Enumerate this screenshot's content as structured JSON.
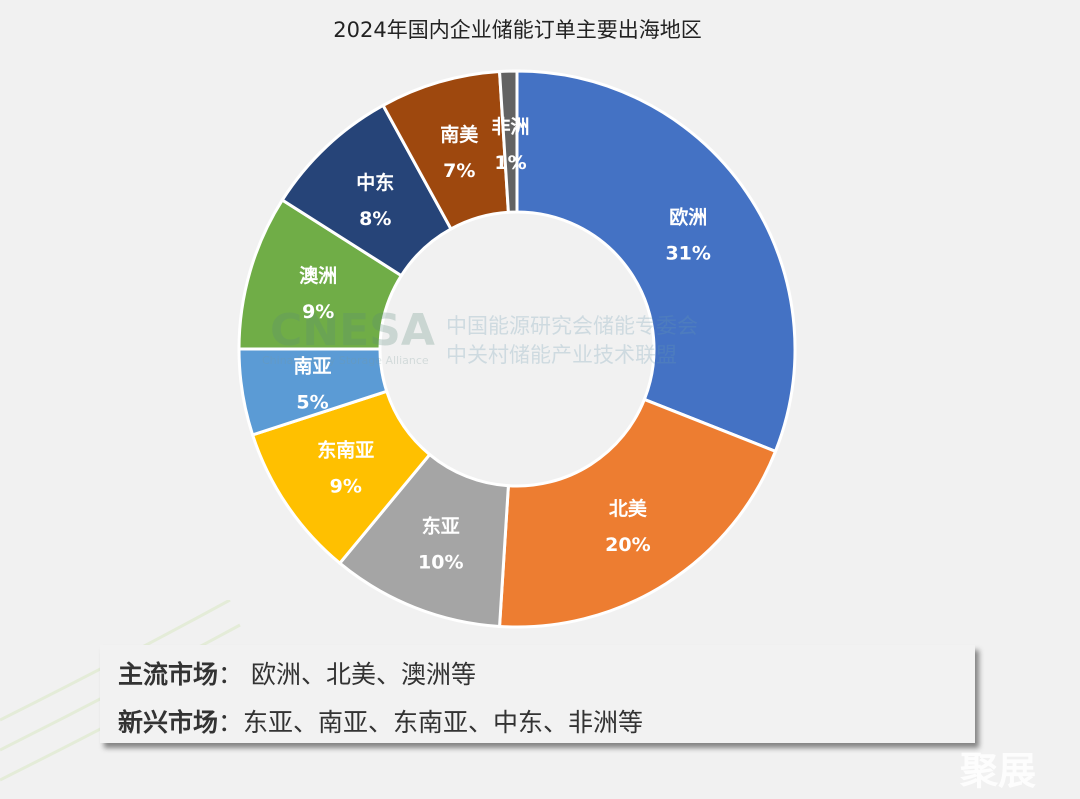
{
  "chart_data": {
    "type": "pie",
    "donut": true,
    "title": "2024年国内企业储能订单主要出海地区",
    "categories": [
      "欧洲",
      "北美",
      "东亚",
      "东南亚",
      "南亚",
      "澳洲",
      "中东",
      "南美",
      "非洲"
    ],
    "values": [
      31,
      20,
      10,
      9,
      5,
      9,
      8,
      7,
      1
    ],
    "labels": [
      "31%",
      "20%",
      "10%",
      "9%",
      "5%",
      "9%",
      "8%",
      "7%",
      "1%"
    ],
    "colors": [
      "#4472C4",
      "#ED7D31",
      "#A5A5A5",
      "#FFC000",
      "#5B9BD5",
      "#70AD47",
      "#264478",
      "#9E480E",
      "#636363"
    ],
    "start": "12 o'clock, clockwise",
    "legend": "none"
  },
  "watermark": {
    "logo": "CNESA",
    "logo_sub": "China Energy Storage Alliance",
    "line1": "中国能源研究会储能专委会",
    "line2": "中关村储能产业技术联盟"
  },
  "summary": {
    "mainstream_label": "主流市场",
    "mainstream_value": "欧洲、北美、澳洲等",
    "emerging_label": "新兴市场",
    "emerging_value": "东亚、南亚、东南亚、中东、非洲等",
    "sep": "："
  },
  "corner_mark": "聚展"
}
